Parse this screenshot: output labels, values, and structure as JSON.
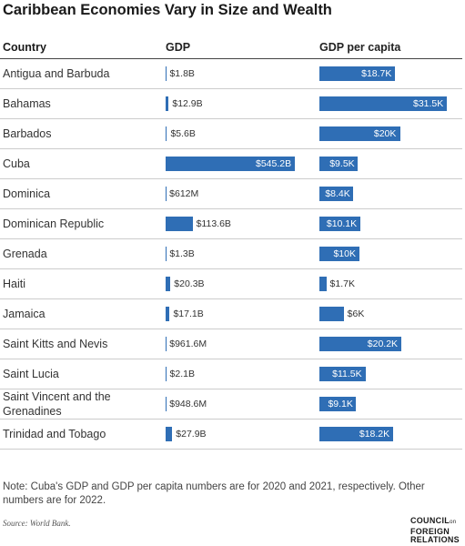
{
  "chart_data": {
    "type": "bar",
    "title": "Caribbean Economies Vary in Size and Wealth",
    "category_header": "Country",
    "categories": [
      "Antigua and Barbuda",
      "Bahamas",
      "Barbados",
      "Cuba",
      "Dominica",
      "Dominican Republic",
      "Grenada",
      "Haiti",
      "Jamaica",
      "Saint Kitts and Nevis",
      "Saint Lucia",
      "Saint Vincent and the Grenadines",
      "Trinidad and Tobago"
    ],
    "series": [
      {
        "name": "GDP",
        "color": "#2f6eb5",
        "values": [
          1.8,
          12.9,
          5.6,
          545.2,
          0.612,
          113.6,
          1.3,
          20.3,
          17.1,
          0.9616,
          2.1,
          0.9486,
          27.9
        ],
        "value_labels": [
          "$1.8B",
          "$12.9B",
          "$5.6B",
          "$545.2B",
          "$612M",
          "$113.6B",
          "$1.3B",
          "$20.3B",
          "$17.1B",
          "$961.6M",
          "$2.1B",
          "$948.6M",
          "$27.9B"
        ]
      },
      {
        "name": "GDP per capita",
        "color": "#2f6eb5",
        "values": [
          18.7,
          31.5,
          20,
          9.5,
          8.4,
          10.1,
          10,
          1.7,
          6,
          20.2,
          11.5,
          9.1,
          18.2
        ],
        "value_labels": [
          "$18.7K",
          "$31.5K",
          "$20K",
          "$9.5K",
          "$8.4K",
          "$10.1K",
          "$10K",
          "$1.7K",
          "$6K",
          "$20.2K",
          "$11.5K",
          "$9.1K",
          "$18.2K"
        ]
      }
    ],
    "note": "Note: Cuba's GDP and GDP per capita numbers are for 2020 and 2021, respectively. Other numbers are for 2022.",
    "source": "Source: World Bank."
  },
  "logo": {
    "line1": "COUNCIL",
    "small": "on",
    "line2": "FOREIGN",
    "line3": "RELATIONS"
  }
}
